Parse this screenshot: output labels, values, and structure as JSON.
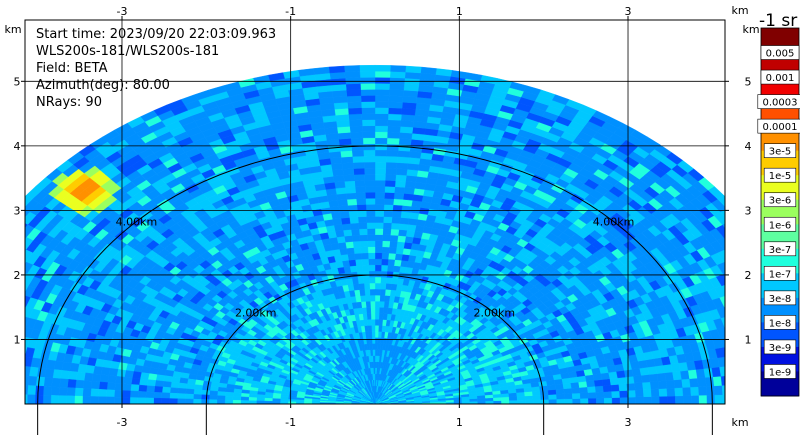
{
  "info": {
    "start_time": "Start time: 2023/09/20 22:03:09.963",
    "instrument": "WLS200s-181/WLS200s-181",
    "field": "Field: BETA",
    "azimuth": "Azimuth(deg): 80.00",
    "nrays": "NRays: 90"
  },
  "colorbar": {
    "unit_label": "-1 sr",
    "labels": [
      "0.005",
      "0.001",
      "0.0003",
      "0.0001",
      "3e-5",
      "1e-5",
      "3e-6",
      "1e-6",
      "3e-7",
      "1e-7",
      "3e-8",
      "1e-8",
      "3e-9",
      "1e-9"
    ],
    "colors": [
      "#800000",
      "#c00000",
      "#f00000",
      "#ff5000",
      "#ff9000",
      "#ffcc00",
      "#eaff20",
      "#9bff5e",
      "#5effa0",
      "#20ffdd",
      "#00c8ff",
      "#0090ff",
      "#0055ff",
      "#0010e0",
      "#00009a"
    ]
  },
  "chart_data": {
    "type": "heatmap",
    "projection": "RHI polar sector (range vs elevation)",
    "x_unit_label": "km",
    "y_unit_label": "km",
    "xlim": [
      -4.15,
      4.15
    ],
    "ylim": [
      0,
      5.95
    ],
    "x_ticks": [
      -3,
      -1,
      1,
      3
    ],
    "y_ticks": [
      1,
      2,
      3,
      4,
      5
    ],
    "max_range_km": 5.25,
    "range_rings": [
      {
        "radius_km": 2,
        "labels": [
          "2.00km",
          "2.00km"
        ]
      },
      {
        "radius_km": 4,
        "labels": [
          "4.00km",
          "4.00km"
        ]
      }
    ],
    "field_description": "Backscatter (BETA) mostly 1e-8 to 1e-7 sr^-1 across the sector; lower values near the instrument; a strong return up to ~3e-4 near x=-3.4 km, y=3.3 km",
    "hotspot": {
      "x_km": -3.45,
      "y_km": 3.3,
      "peak_value": "3e-4"
    }
  }
}
